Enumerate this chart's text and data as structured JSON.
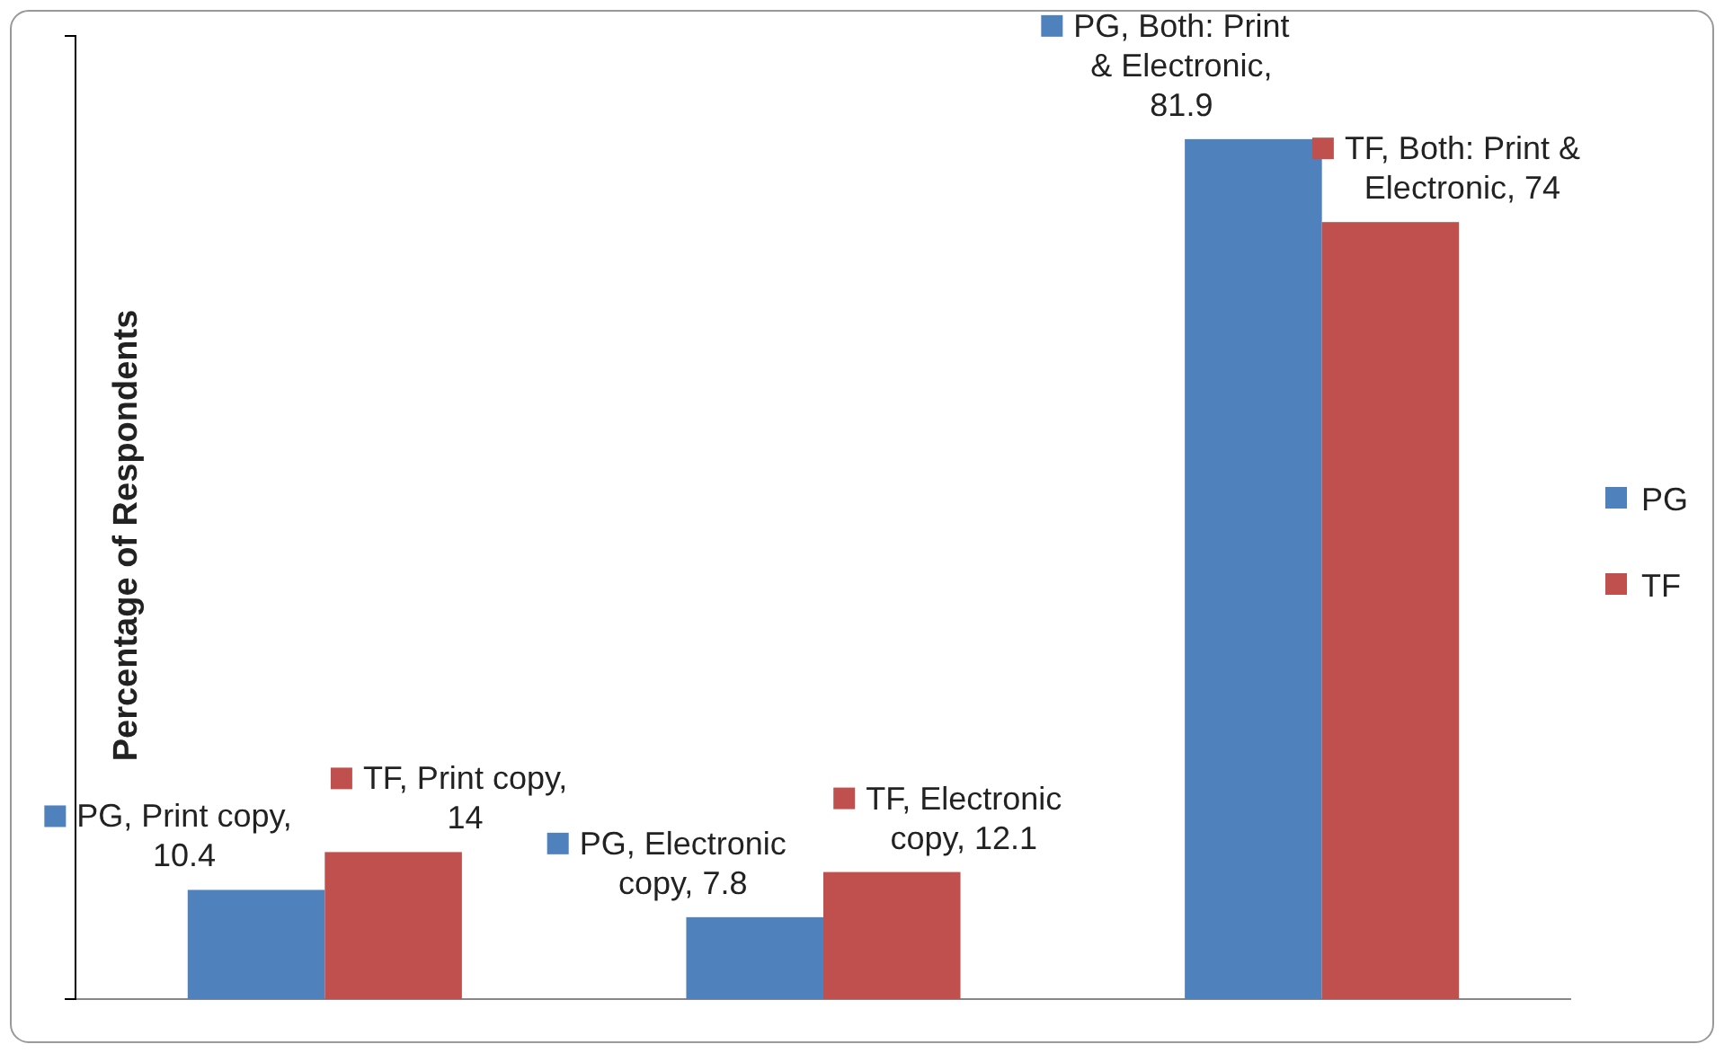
{
  "chart_data": {
    "type": "bar",
    "ylabel": "Percentage of Respondents",
    "categories": [
      null,
      null,
      null
    ],
    "series": [
      {
        "name": "PG",
        "color": "#4f81bd",
        "values": [
          10.4,
          7.8,
          81.9
        ],
        "value_labels": [
          "PG, Print copy, 10.4",
          "PG, Electronic copy, 7.8",
          "PG, Both: Print & Electronic, 81.9"
        ]
      },
      {
        "name": "TF",
        "color": "#c0504d",
        "values": [
          14,
          12.1,
          74
        ],
        "value_labels": [
          "TF, Print copy, 14",
          "TF, Electronic copy, 12.1",
          "TF, Both: Print & Electronic, 74"
        ]
      }
    ],
    "legend": "right"
  }
}
